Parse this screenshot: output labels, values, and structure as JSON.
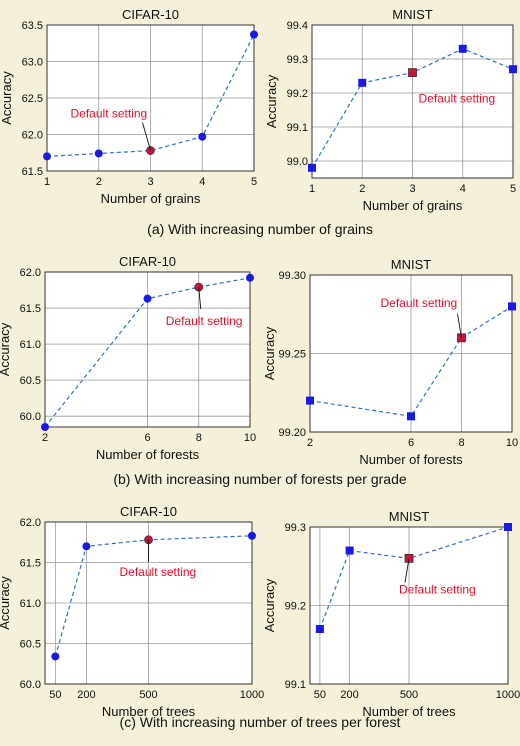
{
  "chart_data": [
    {
      "type": "line",
      "title": "CIFAR-10",
      "xlabel": "Number of grains",
      "ylabel": "Accuracy",
      "x": [
        1,
        2,
        3,
        4,
        5
      ],
      "values": [
        61.7,
        61.74,
        61.78,
        61.97,
        63.37
      ],
      "xticks": [
        1,
        2,
        3,
        4,
        5
      ],
      "yticks": [
        61.5,
        62.0,
        62.5,
        63.0,
        63.5
      ],
      "ytick_labels": [
        "61.5",
        "62.0",
        "62.5",
        "63.0",
        "63.5"
      ],
      "xlim": [
        1,
        5
      ],
      "ylim": [
        61.5,
        63.5
      ],
      "marker": "circle",
      "highlight_index": 2,
      "annotation": "Default setting",
      "grid": true
    },
    {
      "type": "line",
      "title": "MNIST",
      "xlabel": "Number of grains",
      "ylabel": "Accuracy",
      "x": [
        1,
        2,
        3,
        4,
        5
      ],
      "values": [
        98.98,
        99.23,
        99.26,
        99.33,
        99.27
      ],
      "xticks": [
        1,
        2,
        3,
        4,
        5
      ],
      "yticks": [
        99.0,
        99.1,
        99.2,
        99.3,
        99.4
      ],
      "ytick_labels": [
        "99.0",
        "99.1",
        "99.2",
        "99.3",
        "99.4"
      ],
      "xlim": [
        1,
        5
      ],
      "ylim": [
        98.95,
        99.4
      ],
      "marker": "square",
      "highlight_index": 2,
      "annotation": "Default setting",
      "grid": true
    },
    {
      "type": "line",
      "title": "CIFAR-10",
      "xlabel": "Number of forests",
      "ylabel": "Accuracy",
      "x": [
        2,
        6,
        8,
        10
      ],
      "values": [
        59.85,
        61.63,
        61.79,
        61.92
      ],
      "xticks": [
        2,
        6,
        8,
        10
      ],
      "yticks": [
        60.0,
        60.5,
        61.0,
        61.5,
        62.0
      ],
      "ytick_labels": [
        "60.0",
        "60.5",
        "61.0",
        "61.5",
        "62.0"
      ],
      "xlim": [
        2,
        10
      ],
      "ylim": [
        59.85,
        62.0
      ],
      "marker": "circle",
      "highlight_index": 2,
      "annotation": "Default setting",
      "grid": true
    },
    {
      "type": "line",
      "title": "MNIST",
      "xlabel": "Number of forests",
      "ylabel": "Accuracy",
      "x": [
        2,
        6,
        8,
        10
      ],
      "values": [
        99.22,
        99.21,
        99.26,
        99.28
      ],
      "xticks": [
        2,
        6,
        8,
        10
      ],
      "yticks": [
        99.2,
        99.25,
        99.3
      ],
      "ytick_labels": [
        "99.20",
        "99.25",
        "99.30"
      ],
      "xlim": [
        2,
        10
      ],
      "ylim": [
        99.2,
        99.3
      ],
      "marker": "square",
      "highlight_index": 2,
      "annotation": "Default setting",
      "grid": true
    },
    {
      "type": "line",
      "title": "CIFAR-10",
      "xlabel": "Number of trees",
      "ylabel": "Accuracy",
      "x": [
        50,
        200,
        500,
        1000
      ],
      "values": [
        60.34,
        61.7,
        61.78,
        61.83
      ],
      "xticks": [
        50,
        200,
        500,
        1000
      ],
      "yticks": [
        60.0,
        60.5,
        61.0,
        61.5,
        62.0
      ],
      "ytick_labels": [
        "60.0",
        "60.5",
        "61.0",
        "61.5",
        "62.0"
      ],
      "xlim": [
        0,
        1000
      ],
      "ylim": [
        60.0,
        62.0
      ],
      "marker": "circle",
      "highlight_index": 2,
      "annotation": "Default setting",
      "grid": true
    },
    {
      "type": "line",
      "title": "MNIST",
      "xlabel": "Number of trees",
      "ylabel": "Accuracy",
      "x": [
        50,
        200,
        500,
        1000
      ],
      "values": [
        99.17,
        99.27,
        99.26,
        99.3
      ],
      "xticks": [
        50,
        200,
        500,
        1000
      ],
      "yticks": [
        99.1,
        99.2,
        99.3
      ],
      "ytick_labels": [
        "99.1",
        "99.2",
        "99.3"
      ],
      "xlim": [
        0,
        1000
      ],
      "ylim": [
        99.1,
        99.3
      ],
      "marker": "square",
      "highlight_index": 2,
      "annotation": "Default setting",
      "grid": true
    }
  ],
  "captions": [
    "(a) With increasing number of grains",
    "(b) With increasing number of forests per grade",
    "(c) With increasing number of trees per forest"
  ],
  "colors": {
    "background": "#f4f0d9",
    "plot_background": "#ffffff",
    "grid": "#9a9a9a",
    "line": "#2a6fd6",
    "marker": "#1a1ae6",
    "highlight_marker": "#d0103a",
    "annotation_text": "#e0102a"
  }
}
